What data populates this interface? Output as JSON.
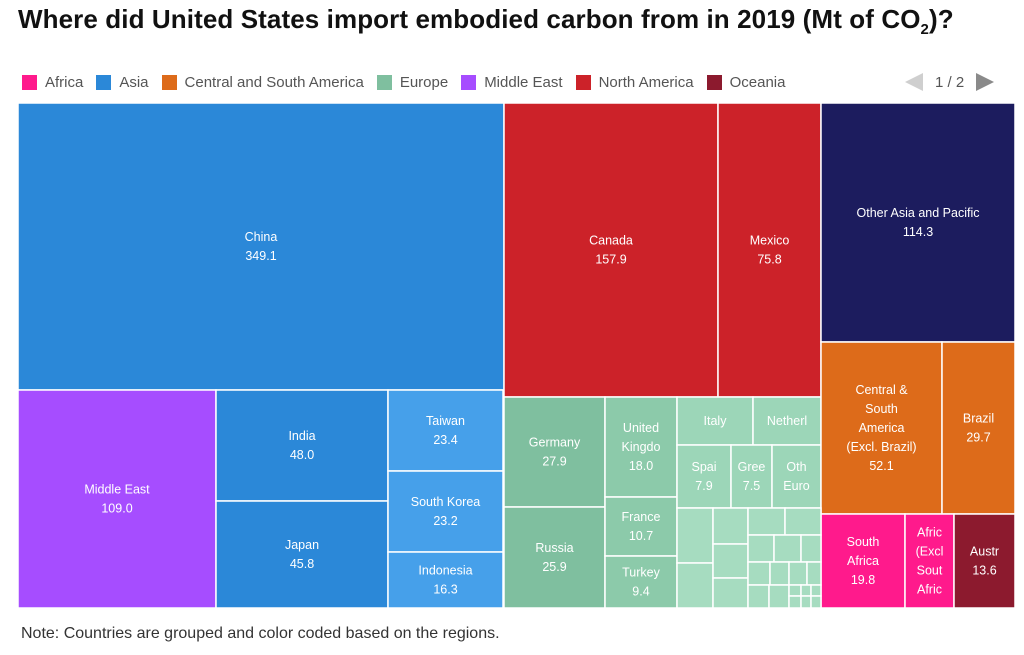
{
  "chart_data": {
    "type": "treemap",
    "title": "Where did United States import embodied carbon from in 2019 (Mt of CO",
    "title_sub": "2",
    "title_end": ")?",
    "legend": [
      {
        "name": "Africa",
        "color": "#ff1a8c"
      },
      {
        "name": "Asia",
        "color": "#2b88d8"
      },
      {
        "name": "Central and South America",
        "color": "#dd6b1a"
      },
      {
        "name": "Europe",
        "color": "#7fbf9f"
      },
      {
        "name": "Middle East",
        "color": "#a64dff"
      },
      {
        "name": "North America",
        "color": "#cc2229"
      },
      {
        "name": "Oceania",
        "color": "#8c1a2e"
      }
    ],
    "legend_page": "1 / 2",
    "items": [
      {
        "name": "China",
        "value": 349.1,
        "label": "China",
        "value_label": "349.1",
        "color": "#2b88d8"
      },
      {
        "name": "Canada",
        "value": 157.9,
        "label": "Canada",
        "value_label": "157.9",
        "color": "#cc2229"
      },
      {
        "name": "Mexico",
        "value": 75.8,
        "label": "Mexico",
        "value_label": "75.8",
        "color": "#cc2229"
      },
      {
        "name": "Other Asia and Pacific",
        "value": 114.3,
        "label": "Other Asia and Pacific",
        "value_label": "114.3",
        "color": "#1c1c5e"
      },
      {
        "name": "Middle East",
        "value": 109.0,
        "label": "Middle East",
        "value_label": "109.0",
        "color": "#a64dff"
      },
      {
        "name": "India",
        "value": 48.0,
        "label": "India",
        "value_label": "48.0",
        "color": "#2b88d8"
      },
      {
        "name": "Japan",
        "value": 45.8,
        "label": "Japan",
        "value_label": "45.8",
        "color": "#2b88d8"
      },
      {
        "name": "Taiwan",
        "value": 23.4,
        "label": "Taiwan",
        "value_label": "23.4",
        "color": "#46a0ea"
      },
      {
        "name": "South Korea",
        "value": 23.2,
        "label": "South Korea",
        "value_label": "23.2",
        "color": "#46a0ea"
      },
      {
        "name": "Indonesia",
        "value": 16.3,
        "label": "Indonesia",
        "value_label": "16.3",
        "color": "#46a0ea"
      },
      {
        "name": "Germany",
        "value": 27.9,
        "label": "Germany",
        "value_label": "27.9",
        "color": "#7fbf9f"
      },
      {
        "name": "Russia",
        "value": 25.9,
        "label": "Russia",
        "value_label": "25.9",
        "color": "#7fbf9f"
      },
      {
        "name": "United Kingdom",
        "value": 18.0,
        "label": "United\nKingdo",
        "value_label": "18.0",
        "color": "#8ccaaa"
      },
      {
        "name": "France",
        "value": 10.7,
        "label": "France",
        "value_label": "10.7",
        "color": "#8ccaaa"
      },
      {
        "name": "Turkey",
        "value": 9.4,
        "label": "Turkey",
        "value_label": "9.4",
        "color": "#8ccaaa"
      },
      {
        "name": "Italy",
        "value": null,
        "label": "Italy",
        "value_label": "",
        "color": "#9cd6b8"
      },
      {
        "name": "Netherlands",
        "value": null,
        "label": "Netherl",
        "value_label": "",
        "color": "#9cd6b8"
      },
      {
        "name": "Spain",
        "value": 7.9,
        "label": "Spai",
        "value_label": "7.9",
        "color": "#9cd6b8"
      },
      {
        "name": "Greece",
        "value": 7.5,
        "label": "Gree",
        "value_label": "7.5",
        "color": "#9cd6b8"
      },
      {
        "name": "Other Europe",
        "value": null,
        "label": "Oth\nEuro",
        "value_label": "",
        "color": "#9cd6b8"
      },
      {
        "name": "Central & South America (Excl. Brazil)",
        "value": 52.1,
        "label": "Central &\nSouth\nAmerica\n(Excl. Brazil)",
        "value_label": "52.1",
        "color": "#dd6b1a"
      },
      {
        "name": "Brazil",
        "value": 29.7,
        "label": "Brazil",
        "value_label": "29.7",
        "color": "#dd6b1a"
      },
      {
        "name": "South Africa",
        "value": 19.8,
        "label": "South\nAfrica",
        "value_label": "19.8",
        "color": "#ff1a8c"
      },
      {
        "name": "Africa (Excl. South Africa)",
        "value": null,
        "label": "Afric\n(Excl\nSout\nAfric",
        "value_label": "",
        "color": "#ff1a8c"
      },
      {
        "name": "Australia",
        "value": 13.6,
        "label": "Austr",
        "value_label": "13.6",
        "color": "#8c1a2e"
      }
    ],
    "note": "Note: Countries are grouped and color coded based on the regions."
  }
}
